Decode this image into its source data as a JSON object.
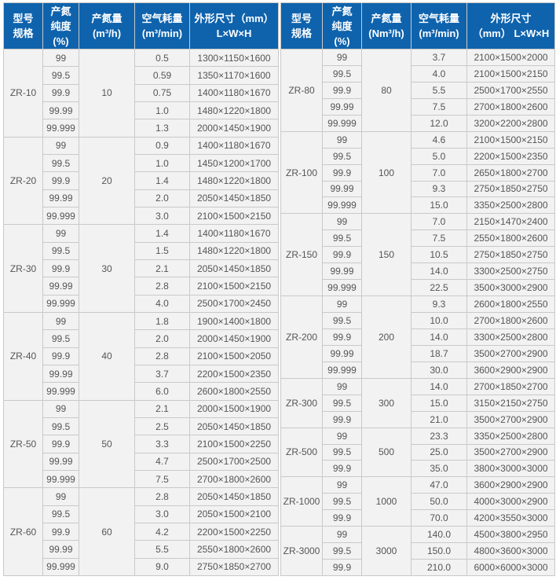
{
  "colors": {
    "header_bg": "#0f63ad",
    "header_text": "#ffffff",
    "cell_bg": "#f2f2f2",
    "border": "#c9c9c9",
    "text": "#555555"
  },
  "left_table": {
    "headers": [
      [
        "型号",
        "规格"
      ],
      [
        "产氮",
        "纯度",
        "(%)"
      ],
      [
        "产氮量",
        "(m³/h)"
      ],
      [
        "空气耗量",
        "(m³/min)"
      ],
      [
        "外形尺寸（mm）",
        "L×W×H"
      ]
    ],
    "groups": [
      {
        "model": "ZR-10",
        "output": "10",
        "rows": [
          [
            "99",
            "0.5",
            "1300×1150×1600"
          ],
          [
            "99.5",
            "0.59",
            "1350×1170×1600"
          ],
          [
            "99.9",
            "0.75",
            "1400×1180×1670"
          ],
          [
            "99.99",
            "1.0",
            "1480×1220×1800"
          ],
          [
            "99.999",
            "1.3",
            "2000×1450×1900"
          ]
        ]
      },
      {
        "model": "ZR-20",
        "output": "20",
        "rows": [
          [
            "99",
            "0.9",
            "1400×1180×1670"
          ],
          [
            "99.5",
            "1.0",
            "1450×1200×1700"
          ],
          [
            "99.9",
            "1.4",
            "1480×1220×1800"
          ],
          [
            "99.99",
            "2.0",
            "2050×1450×1850"
          ],
          [
            "99.999",
            "3.0",
            "2100×1500×2150"
          ]
        ]
      },
      {
        "model": "ZR-30",
        "output": "30",
        "rows": [
          [
            "99",
            "1.4",
            "1400×1180×1670"
          ],
          [
            "99.5",
            "1.5",
            "1480×1220×1800"
          ],
          [
            "99.9",
            "2.1",
            "2050×1450×1850"
          ],
          [
            "99.99",
            "2.8",
            "2100×1500×2150"
          ],
          [
            "99.999",
            "4.0",
            "2500×1700×2450"
          ]
        ]
      },
      {
        "model": "ZR-40",
        "output": "40",
        "rows": [
          [
            "99",
            "1.8",
            "1900×1400×1800"
          ],
          [
            "99.5",
            "2.0",
            "2000×1450×1900"
          ],
          [
            "99.9",
            "2.8",
            "2100×1500×2050"
          ],
          [
            "99.99",
            "3.7",
            "2200×1500×2350"
          ],
          [
            "99.999",
            "6.0",
            "2600×1800×2550"
          ]
        ]
      },
      {
        "model": "ZR-50",
        "output": "50",
        "rows": [
          [
            "99",
            "2.1",
            "2000×1500×1900"
          ],
          [
            "99.5",
            "2.5",
            "2050×1450×1850"
          ],
          [
            "99.9",
            "3.3",
            "2100×1500×2250"
          ],
          [
            "99.99",
            "4.7",
            "2500×1700×2500"
          ],
          [
            "99.999",
            "7.5",
            "2700×1800×2600"
          ]
        ]
      },
      {
        "model": "ZR-60",
        "output": "60",
        "rows": [
          [
            "99",
            "2.8",
            "2050×1450×1850"
          ],
          [
            "99.5",
            "3.0",
            "2050×1500×2100"
          ],
          [
            "99.9",
            "4.2",
            "2200×1500×2250"
          ],
          [
            "99.99",
            "5.5",
            "2550×1800×2600"
          ],
          [
            "99.999",
            "9.0",
            "2750×1850×2700"
          ]
        ]
      }
    ]
  },
  "right_table": {
    "headers": [
      [
        "型号",
        "规格"
      ],
      [
        "产氮",
        "纯度",
        "(%)"
      ],
      [
        "产氮量",
        "(Nm³/h)"
      ],
      [
        "空气耗量",
        "(m³/min)"
      ],
      [
        "外形尺寸",
        "（mm） L×W×H"
      ]
    ],
    "groups": [
      {
        "model": "ZR-80",
        "output": "80",
        "rows": [
          [
            "99",
            "3.7",
            "2100×1500×2000"
          ],
          [
            "99.5",
            "4.0",
            "2100×1500×2150"
          ],
          [
            "99.9",
            "5.5",
            "2500×1700×2550"
          ],
          [
            "99.99",
            "7.5",
            "2700×1800×2600"
          ],
          [
            "99.999",
            "12.0",
            "3200×2200×2800"
          ]
        ]
      },
      {
        "model": "ZR-100",
        "output": "100",
        "rows": [
          [
            "99",
            "4.6",
            "2100×1500×2150"
          ],
          [
            "99.5",
            "5.0",
            "2200×1500×2350"
          ],
          [
            "99.9",
            "7.0",
            "2650×1800×2700"
          ],
          [
            "99.99",
            "9.3",
            "2750×1850×2750"
          ],
          [
            "99.999",
            "15.0",
            "3350×2500×2800"
          ]
        ]
      },
      {
        "model": "ZR-150",
        "output": "150",
        "rows": [
          [
            "99",
            "7.0",
            "2150×1470×2400"
          ],
          [
            "99.5",
            "7.5",
            "2550×1800×2600"
          ],
          [
            "99.9",
            "10.5",
            "2750×1850×2750"
          ],
          [
            "99.99",
            "14.0",
            "3300×2500×2750"
          ],
          [
            "99.999",
            "22.5",
            "3500×3000×2900"
          ]
        ]
      },
      {
        "model": "ZR-200",
        "output": "200",
        "rows": [
          [
            "99",
            "9.3",
            "2600×1800×2550"
          ],
          [
            "99.5",
            "10.0",
            "2700×1800×2600"
          ],
          [
            "99.9",
            "14.0",
            "3300×2500×2800"
          ],
          [
            "99.99",
            "18.7",
            "3500×2700×2900"
          ],
          [
            "99.999",
            "30.0",
            "3600×2900×2900"
          ]
        ]
      },
      {
        "model": "ZR-300",
        "output": "300",
        "rows": [
          [
            "99",
            "14.0",
            "2700×1850×2700"
          ],
          [
            "99.5",
            "15.0",
            "3150×2150×2750"
          ],
          [
            "99.9",
            "21.0",
            "3500×2700×2900"
          ]
        ]
      },
      {
        "model": "ZR-500",
        "output": "500",
        "rows": [
          [
            "99",
            "23.3",
            "3350×2500×2800"
          ],
          [
            "99.5",
            "25.0",
            "3500×2700×2900"
          ],
          [
            "99.9",
            "35.0",
            "3800×3000×3000"
          ]
        ]
      },
      {
        "model": "ZR-1000",
        "output": "1000",
        "rows": [
          [
            "99",
            "47.0",
            "3600×2900×2900"
          ],
          [
            "99.5",
            "50.0",
            "4000×3000×2900"
          ],
          [
            "99.9",
            "70.0",
            "4200×3550×3000"
          ]
        ]
      },
      {
        "model": "ZR-3000",
        "output": "3000",
        "rows": [
          [
            "99",
            "140.0",
            "4500×3800×2950"
          ],
          [
            "99.5",
            "150.0",
            "4800×3600×3000"
          ],
          [
            "99.9",
            "210.0",
            "6000×6000×3000"
          ]
        ]
      }
    ]
  }
}
